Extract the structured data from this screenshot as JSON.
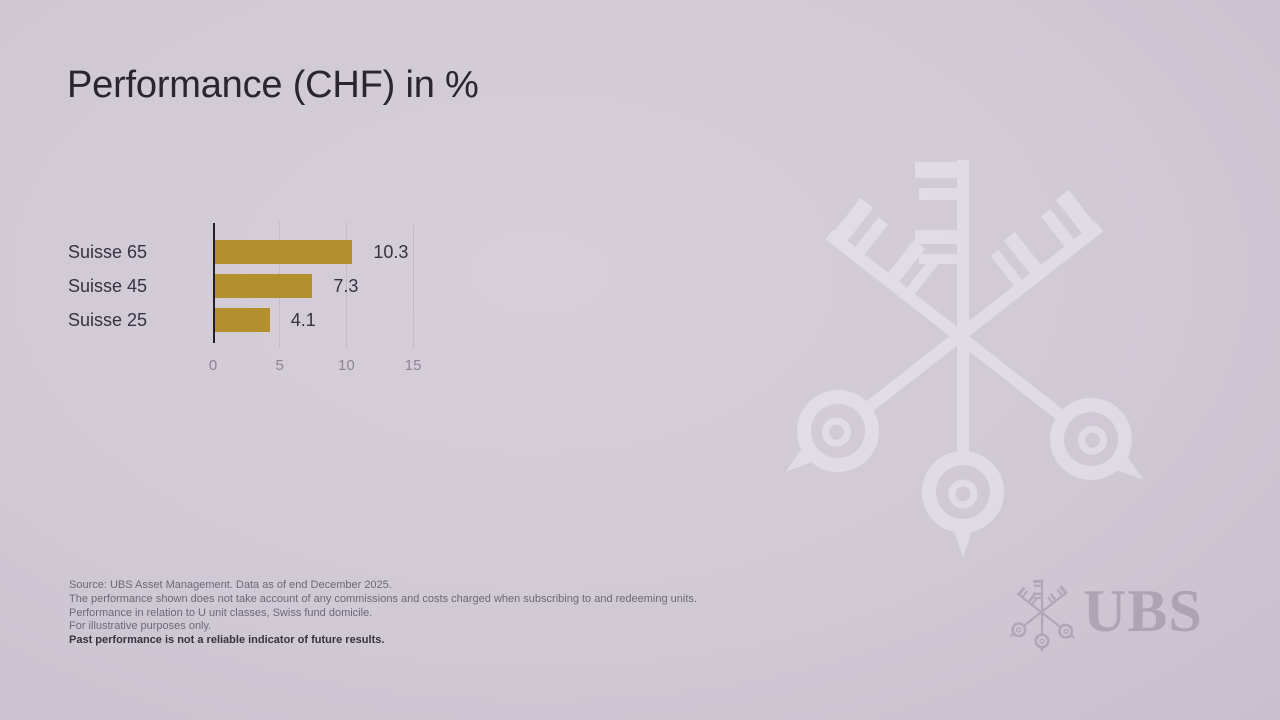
{
  "slide": {
    "title": "Performance (CHF) in %",
    "footnotes": [
      "Source: UBS Asset Management. Data as of end December 2025.",
      "The performance shown does not take account of any commissions and costs charged when subscribing to and redeeming units.",
      "Performance in relation to U unit classes, Swiss fund domicile.",
      "For illustrative purposes only.",
      "Past performance is not a reliable indicator of future results."
    ],
    "branding": {
      "logo_text": "UBS",
      "watermark_icon": "ubs-three-keys-icon",
      "logo_color": "#746886",
      "watermark_color": "#ffffff"
    }
  },
  "chart_data": {
    "type": "bar",
    "orientation": "horizontal",
    "title": "Performance (CHF) in %",
    "categories": [
      "Suisse 65",
      "Suisse 45",
      "Suisse 25"
    ],
    "values": [
      10.3,
      7.3,
      4.1
    ],
    "value_labels": [
      "10.3",
      "7.3",
      "4.1"
    ],
    "x_ticks": [
      "0",
      "5",
      "10",
      "15"
    ],
    "xlim": [
      0,
      15
    ],
    "grid": true,
    "legend": "none",
    "bar_color": "#b29030",
    "axis_color": "#221e28",
    "tick_label_color": "#8c8496"
  }
}
